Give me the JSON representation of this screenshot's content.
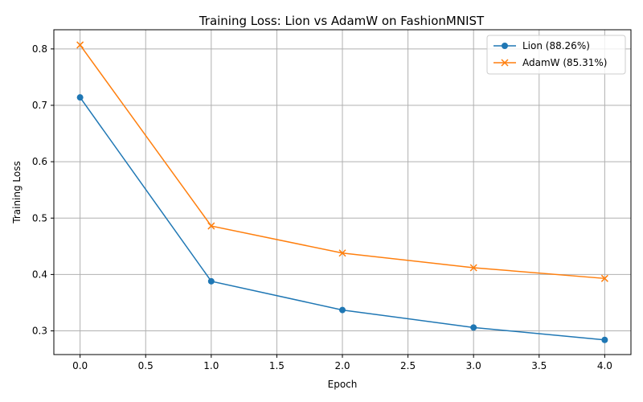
{
  "chart_data": {
    "type": "line",
    "title": "Training Loss: Lion vs AdamW on FashionMNIST",
    "xlabel": "Epoch",
    "ylabel": "Training Loss",
    "xlim": [
      -0.2,
      4.2
    ],
    "ylim": [
      0.258,
      0.834
    ],
    "xticks": [
      "0.0",
      "0.5",
      "1.0",
      "1.5",
      "2.0",
      "2.5",
      "3.0",
      "3.5",
      "4.0"
    ],
    "yticks": [
      "0.3",
      "0.4",
      "0.5",
      "0.6",
      "0.7",
      "0.8"
    ],
    "grid": true,
    "legend_position": "top-right",
    "x": [
      0,
      1,
      2,
      3,
      4
    ],
    "series": [
      {
        "name": "Lion (88.26%)",
        "values": [
          0.714,
          0.388,
          0.337,
          0.306,
          0.284
        ],
        "color": "#1f77b4",
        "marker": "circle"
      },
      {
        "name": "AdamW (85.31%)",
        "values": [
          0.807,
          0.486,
          0.438,
          0.412,
          0.393
        ],
        "color": "#ff7f0e",
        "marker": "x"
      }
    ]
  }
}
